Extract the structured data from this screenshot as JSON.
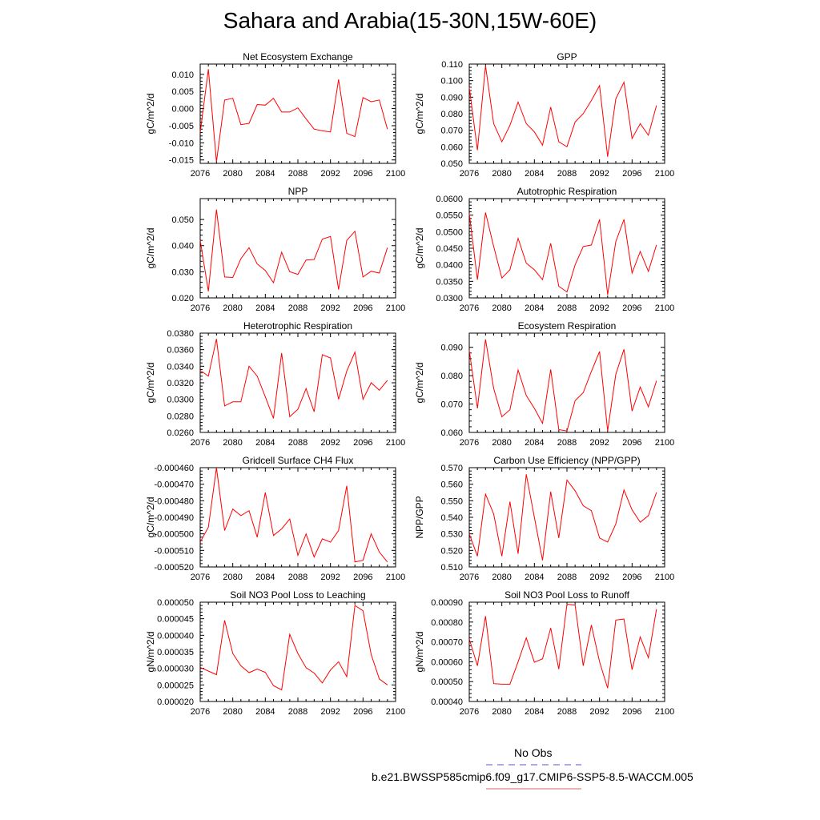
{
  "title": "Sahara and Arabia(15-30N,15W-60E)",
  "legend": {
    "obs_label": "No Obs",
    "model_label": "b.e21.BWSSP585cmip6.f09_g17.CMIP6-SSP5-8.5-WACCM.005",
    "obs_color": "#5555cc",
    "model_color": "#e06060"
  },
  "series_color": "#ff0000",
  "chart_data": [
    {
      "type": "line",
      "title": "Net Ecosystem Exchange",
      "ylabel": "gC/m^2/d",
      "xlim": [
        2076,
        2100
      ],
      "ylim": [
        -0.016,
        0.013
      ],
      "xticks": [
        2076,
        2080,
        2084,
        2088,
        2092,
        2096,
        2100
      ],
      "yticks": [
        0.01,
        0.005,
        0.0,
        -0.005,
        -0.01,
        -0.015
      ],
      "ytick_labels": [
        "0.010",
        "0.005",
        "0.000",
        "-0.005",
        "-0.010",
        "-0.015"
      ],
      "x": [
        2076,
        2077,
        2078,
        2079,
        2080,
        2081,
        2082,
        2083,
        2084,
        2085,
        2086,
        2087,
        2088,
        2089,
        2090,
        2091,
        2092,
        2093,
        2094,
        2095,
        2096,
        2097,
        2098,
        2099
      ],
      "values": [
        -0.007,
        0.0115,
        -0.0155,
        0.0025,
        0.003,
        -0.0047,
        -0.0043,
        0.0012,
        0.001,
        0.003,
        -0.001,
        -0.001,
        0.0002,
        -0.003,
        -0.006,
        -0.0065,
        -0.0068,
        0.0085,
        -0.0072,
        -0.0082,
        0.0032,
        0.002,
        0.0025,
        -0.006
      ]
    },
    {
      "type": "line",
      "title": "GPP",
      "ylabel": "gC/m^2/d",
      "xlim": [
        2076,
        2100
      ],
      "ylim": [
        0.05,
        0.11
      ],
      "xticks": [
        2076,
        2080,
        2084,
        2088,
        2092,
        2096,
        2100
      ],
      "yticks": [
        0.11,
        0.1,
        0.09,
        0.08,
        0.07,
        0.06,
        0.05
      ],
      "ytick_labels": [
        "0.110",
        "0.100",
        "0.090",
        "0.080",
        "0.070",
        "0.060",
        "0.050"
      ],
      "x": [
        2076,
        2077,
        2078,
        2079,
        2080,
        2081,
        2082,
        2083,
        2084,
        2085,
        2086,
        2087,
        2088,
        2089,
        2090,
        2091,
        2092,
        2093,
        2094,
        2095,
        2096,
        2097,
        2098,
        2099
      ],
      "values": [
        0.096,
        0.058,
        0.109,
        0.074,
        0.063,
        0.073,
        0.087,
        0.074,
        0.069,
        0.061,
        0.084,
        0.063,
        0.06,
        0.075,
        0.08,
        0.088,
        0.097,
        0.054,
        0.089,
        0.099,
        0.065,
        0.074,
        0.067,
        0.085
      ]
    },
    {
      "type": "line",
      "title": "NPP",
      "ylabel": "gC/m^2/d",
      "xlim": [
        2076,
        2100
      ],
      "ylim": [
        0.02,
        0.058
      ],
      "xticks": [
        2076,
        2080,
        2084,
        2088,
        2092,
        2096,
        2100
      ],
      "yticks": [
        0.05,
        0.04,
        0.03,
        0.02
      ],
      "ytick_labels": [
        "0.050",
        "0.040",
        "0.030",
        "0.020"
      ],
      "x": [
        2076,
        2077,
        2078,
        2079,
        2080,
        2081,
        2082,
        2083,
        2084,
        2085,
        2086,
        2087,
        2088,
        2089,
        2090,
        2091,
        2092,
        2093,
        2094,
        2095,
        2096,
        2097,
        2098,
        2099
      ],
      "values": [
        0.042,
        0.0225,
        0.0538,
        0.028,
        0.0278,
        0.035,
        0.0392,
        0.033,
        0.0305,
        0.0258,
        0.0375,
        0.03,
        0.029,
        0.0345,
        0.0347,
        0.0425,
        0.0435,
        0.0232,
        0.042,
        0.0455,
        0.028,
        0.0302,
        0.0295,
        0.0392
      ]
    },
    {
      "type": "line",
      "title": "Autotrophic Respiration",
      "ylabel": "gC/m^2/d",
      "xlim": [
        2076,
        2100
      ],
      "ylim": [
        0.03,
        0.06
      ],
      "xticks": [
        2076,
        2080,
        2084,
        2088,
        2092,
        2096,
        2100
      ],
      "yticks": [
        0.06,
        0.055,
        0.05,
        0.045,
        0.04,
        0.035,
        0.03
      ],
      "ytick_labels": [
        "0.0600",
        "0.0550",
        "0.0500",
        "0.0450",
        "0.0400",
        "0.0350",
        "0.0300"
      ],
      "x": [
        2076,
        2077,
        2078,
        2079,
        2080,
        2081,
        2082,
        2083,
        2084,
        2085,
        2086,
        2087,
        2088,
        2089,
        2090,
        2091,
        2092,
        2093,
        2094,
        2095,
        2096,
        2097,
        2098,
        2099
      ],
      "values": [
        0.0555,
        0.0355,
        0.0558,
        0.0455,
        0.036,
        0.0385,
        0.048,
        0.0405,
        0.0385,
        0.0355,
        0.0465,
        0.0335,
        0.0318,
        0.04,
        0.0455,
        0.046,
        0.0537,
        0.031,
        0.047,
        0.0537,
        0.0375,
        0.044,
        0.038,
        0.046
      ]
    },
    {
      "type": "line",
      "title": "Heterotrophic Respiration",
      "ylabel": "gC/m^2/d",
      "xlim": [
        2076,
        2100
      ],
      "ylim": [
        0.026,
        0.038
      ],
      "xticks": [
        2076,
        2080,
        2084,
        2088,
        2092,
        2096,
        2100
      ],
      "yticks": [
        0.038,
        0.036,
        0.034,
        0.032,
        0.03,
        0.028,
        0.026
      ],
      "ytick_labels": [
        "0.0380",
        "0.0360",
        "0.0340",
        "0.0320",
        "0.0300",
        "0.0280",
        "0.0260"
      ],
      "x": [
        2076,
        2077,
        2078,
        2079,
        2080,
        2081,
        2082,
        2083,
        2084,
        2085,
        2086,
        2087,
        2088,
        2089,
        2090,
        2091,
        2092,
        2093,
        2094,
        2095,
        2096,
        2097,
        2098,
        2099
      ],
      "values": [
        0.0335,
        0.0328,
        0.0373,
        0.0292,
        0.0297,
        0.0297,
        0.034,
        0.0328,
        0.0303,
        0.0277,
        0.0356,
        0.0279,
        0.0288,
        0.0313,
        0.0285,
        0.0354,
        0.035,
        0.03,
        0.0334,
        0.0357,
        0.03,
        0.032,
        0.0311,
        0.0323
      ]
    },
    {
      "type": "line",
      "title": "Ecosystem Respiration",
      "ylabel": "gC/m^2/d",
      "xlim": [
        2076,
        2100
      ],
      "ylim": [
        0.06,
        0.095
      ],
      "xticks": [
        2076,
        2080,
        2084,
        2088,
        2092,
        2096,
        2100
      ],
      "yticks": [
        0.09,
        0.08,
        0.07,
        0.06
      ],
      "ytick_labels": [
        "0.090",
        "0.080",
        "0.070",
        "0.060"
      ],
      "x": [
        2076,
        2077,
        2078,
        2079,
        2080,
        2081,
        2082,
        2083,
        2084,
        2085,
        2086,
        2087,
        2088,
        2089,
        2090,
        2091,
        2092,
        2093,
        2094,
        2095,
        2096,
        2097,
        2098,
        2099
      ],
      "values": [
        0.089,
        0.0685,
        0.0928,
        0.0755,
        0.0655,
        0.068,
        0.082,
        0.073,
        0.0685,
        0.0632,
        0.0822,
        0.061,
        0.0605,
        0.0712,
        0.074,
        0.0815,
        0.0885,
        0.0605,
        0.0805,
        0.0893,
        0.0675,
        0.076,
        0.069,
        0.0782
      ]
    },
    {
      "type": "line",
      "title": "Gridcell Surface CH4 Flux",
      "ylabel": "gC/m^2/d",
      "xlim": [
        2076,
        2100
      ],
      "ylim": [
        -0.00052,
        -0.00046
      ],
      "xticks": [
        2076,
        2080,
        2084,
        2088,
        2092,
        2096,
        2100
      ],
      "yticks": [
        -0.00046,
        -0.00047,
        -0.00048,
        -0.00049,
        -0.0005,
        -0.00051,
        -0.00052
      ],
      "ytick_labels": [
        "-0.000460",
        "-0.000470",
        "-0.000480",
        "-0.000490",
        "-0.000500",
        "-0.000510",
        "-0.000520"
      ],
      "x": [
        2076,
        2077,
        2078,
        2079,
        2080,
        2081,
        2082,
        2083,
        2084,
        2085,
        2086,
        2087,
        2088,
        2089,
        2090,
        2091,
        2092,
        2093,
        2094,
        2095,
        2096,
        2097,
        2098,
        2099
      ],
      "values": [
        -0.000505,
        -0.000496,
        -0.00046,
        -0.000498,
        -0.000485,
        -0.000489,
        -0.000486,
        -0.000502,
        -0.000475,
        -0.000501,
        -0.000497,
        -0.000491,
        -0.000513,
        -0.0005,
        -0.000514,
        -0.000503,
        -0.000505,
        -0.000498,
        -0.000471,
        -0.000517,
        -0.000516,
        -0.0005,
        -0.000511,
        -0.000517
      ]
    },
    {
      "type": "line",
      "title": "Carbon Use Efficiency (NPP/GPP)",
      "ylabel": "NPP/GPP",
      "xlim": [
        2076,
        2100
      ],
      "ylim": [
        0.51,
        0.57
      ],
      "xticks": [
        2076,
        2080,
        2084,
        2088,
        2092,
        2096,
        2100
      ],
      "yticks": [
        0.57,
        0.56,
        0.55,
        0.54,
        0.53,
        0.52,
        0.51
      ],
      "ytick_labels": [
        "0.570",
        "0.560",
        "0.550",
        "0.540",
        "0.530",
        "0.520",
        "0.510"
      ],
      "x": [
        2076,
        2077,
        2078,
        2079,
        2080,
        2081,
        2082,
        2083,
        2084,
        2085,
        2086,
        2087,
        2088,
        2089,
        2090,
        2091,
        2092,
        2093,
        2094,
        2095,
        2096,
        2097,
        2098,
        2099
      ],
      "values": [
        0.53,
        0.5165,
        0.554,
        0.542,
        0.5165,
        0.5495,
        0.518,
        0.566,
        0.54,
        0.514,
        0.5555,
        0.5275,
        0.5625,
        0.556,
        0.547,
        0.544,
        0.5275,
        0.525,
        0.536,
        0.5565,
        0.5445,
        0.537,
        0.541,
        0.555
      ]
    },
    {
      "type": "line",
      "title": "Soil NO3 Pool Loss to Leaching",
      "ylabel": "gN/m^2/d",
      "xlim": [
        2076,
        2100
      ],
      "ylim": [
        2e-05,
        5e-05
      ],
      "xticks": [
        2076,
        2080,
        2084,
        2088,
        2092,
        2096,
        2100
      ],
      "yticks": [
        5e-05,
        4.5e-05,
        4e-05,
        3.5e-05,
        3e-05,
        2.5e-05,
        2e-05
      ],
      "ytick_labels": [
        "0.000050",
        "0.000045",
        "0.000040",
        "0.000035",
        "0.000030",
        "0.000025",
        "0.000020"
      ],
      "x": [
        2076,
        2077,
        2078,
        2079,
        2080,
        2081,
        2082,
        2083,
        2084,
        2085,
        2086,
        2087,
        2088,
        2089,
        2090,
        2091,
        2092,
        2093,
        2094,
        2095,
        2096,
        2097,
        2098,
        2099
      ],
      "values": [
        3.03e-05,
        2.92e-05,
        2.81e-05,
        4.45e-05,
        3.45e-05,
        3.08e-05,
        2.87e-05,
        2.98e-05,
        2.88e-05,
        2.48e-05,
        2.35e-05,
        4.03e-05,
        3.45e-05,
        3.02e-05,
        2.86e-05,
        2.56e-05,
        2.95e-05,
        3.2e-05,
        2.75e-05,
        4.9e-05,
        4.74e-05,
        3.42e-05,
        2.68e-05,
        2.5e-05
      ]
    },
    {
      "type": "line",
      "title": "Soil NO3 Pool Loss to Runoff",
      "ylabel": "gN/m^2/d",
      "xlim": [
        2076,
        2100
      ],
      "ylim": [
        0.0004,
        0.0009
      ],
      "xticks": [
        2076,
        2080,
        2084,
        2088,
        2092,
        2096,
        2100
      ],
      "yticks": [
        0.0009,
        0.0008,
        0.0007,
        0.0006,
        0.0005,
        0.0004
      ],
      "ytick_labels": [
        "0.00090",
        "0.00080",
        "0.00070",
        "0.00060",
        "0.00050",
        "0.00040"
      ],
      "x": [
        2076,
        2077,
        2078,
        2079,
        2080,
        2081,
        2082,
        2083,
        2084,
        2085,
        2086,
        2087,
        2088,
        2089,
        2090,
        2091,
        2092,
        2093,
        2094,
        2095,
        2096,
        2097,
        2098,
        2099
      ],
      "values": [
        0.000715,
        0.00058,
        0.00083,
        0.00049,
        0.000487,
        0.000487,
        0.0006,
        0.00072,
        0.000598,
        0.000615,
        0.00077,
        0.000563,
        0.00089,
        0.000885,
        0.00058,
        0.000785,
        0.0006,
        0.000467,
        0.00081,
        0.000815,
        0.00056,
        0.000725,
        0.00062,
        0.000865
      ]
    }
  ]
}
